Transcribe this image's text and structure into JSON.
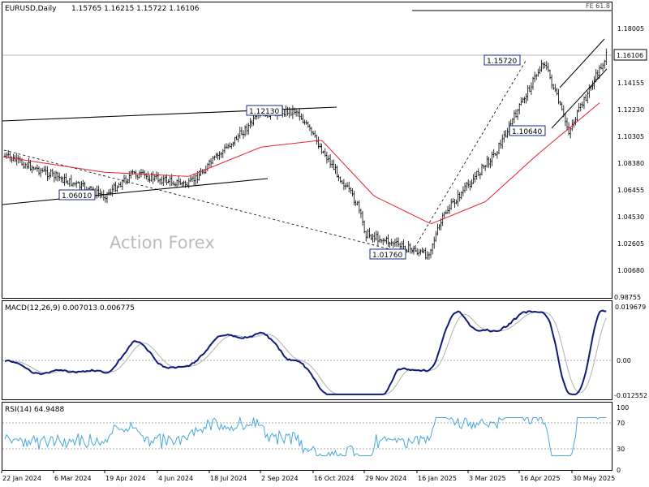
{
  "header": {
    "symbol": "EURUSD,Daily",
    "ohlc": "1.15765 1.16215 1.15722 1.16106",
    "fe_label": "FE 61.8"
  },
  "watermark": "Action Forex",
  "price_labels": {
    "current": "1.16106",
    "ticks": [
      "1.18005",
      "1.16106",
      "1.14155",
      "1.12230",
      "1.10305",
      "1.08380",
      "1.06455",
      "1.04530",
      "1.02605",
      "1.00680",
      "0.98755"
    ]
  },
  "annotations": {
    "high_1": "1.12130",
    "low_1": "1.06010",
    "low_2": "1.01760",
    "high_2": "1.15720",
    "low_3": "1.10640"
  },
  "macd": {
    "label": "MACD(12,26,9) 0.007013 0.006775",
    "ticks": [
      "0.019679",
      "0.00",
      "-0.012552"
    ]
  },
  "rsi": {
    "label": "RSI(14) 64.9488",
    "ticks": [
      "100",
      "70",
      "30",
      "0"
    ]
  },
  "date_ticks": [
    "22 Jan 2024",
    "6 Mar 2024",
    "19 Apr 2024",
    "4 Jun 2024",
    "18 Jul 2024",
    "2 Sep 2024",
    "16 Oct 2024",
    "29 Nov 2024",
    "16 Jan 2025",
    "3 Mar 2025",
    "16 Apr 2025",
    "30 May 2025"
  ],
  "colors": {
    "price_bars": "#000000",
    "moving_average": "#e8202a",
    "macd_line": "#0f1a7a",
    "signal_line": "#b0b0b0",
    "rsi_line": "#4aa8d8",
    "box_border": "#1a2a8a"
  },
  "chart_data": {
    "type": "ohlc",
    "title": "EURUSD,Daily",
    "y_range": [
      0.98755,
      1.18005
    ],
    "x_range": [
      "2024-01-22",
      "2025-06-13"
    ],
    "key_points": [
      {
        "date": "2024-01-22",
        "close": 1.089
      },
      {
        "date": "2024-04-16",
        "close": 1.0601
      },
      {
        "date": "2024-05-10",
        "close": 1.076
      },
      {
        "date": "2024-06-26",
        "close": 1.068
      },
      {
        "date": "2024-08-26",
        "close": 1.119
      },
      {
        "date": "2024-09-25",
        "close": 1.1213
      },
      {
        "date": "2024-11-15",
        "close": 1.054
      },
      {
        "date": "2024-11-22",
        "close": 1.033
      },
      {
        "date": "2025-01-13",
        "close": 1.0176
      },
      {
        "date": "2025-01-28",
        "close": 1.048
      },
      {
        "date": "2025-03-12",
        "close": 1.092
      },
      {
        "date": "2025-04-21",
        "close": 1.1572
      },
      {
        "date": "2025-05-12",
        "close": 1.1064
      },
      {
        "date": "2025-06-13",
        "close": 1.1611
      }
    ],
    "moving_average": [
      {
        "date": "2024-01-22",
        "value": 1.088
      },
      {
        "date": "2024-04-16",
        "value": 1.077
      },
      {
        "date": "2024-06-26",
        "value": 1.074
      },
      {
        "date": "2024-08-26",
        "value": 1.095
      },
      {
        "date": "2024-10-16",
        "value": 1.1
      },
      {
        "date": "2024-11-29",
        "value": 1.06
      },
      {
        "date": "2025-01-16",
        "value": 1.04
      },
      {
        "date": "2025-03-03",
        "value": 1.056
      },
      {
        "date": "2025-04-16",
        "value": 1.09
      },
      {
        "date": "2025-06-13",
        "value": 1.131
      }
    ],
    "macd": {
      "label": "MACD(12,26,9)",
      "macd": 0.007013,
      "signal": 0.006775,
      "range": [
        -0.012552,
        0.019679
      ]
    },
    "rsi": {
      "label": "RSI(14)",
      "value": 64.9488,
      "levels": [
        70,
        30
      ],
      "range": [
        0,
        100
      ]
    }
  }
}
